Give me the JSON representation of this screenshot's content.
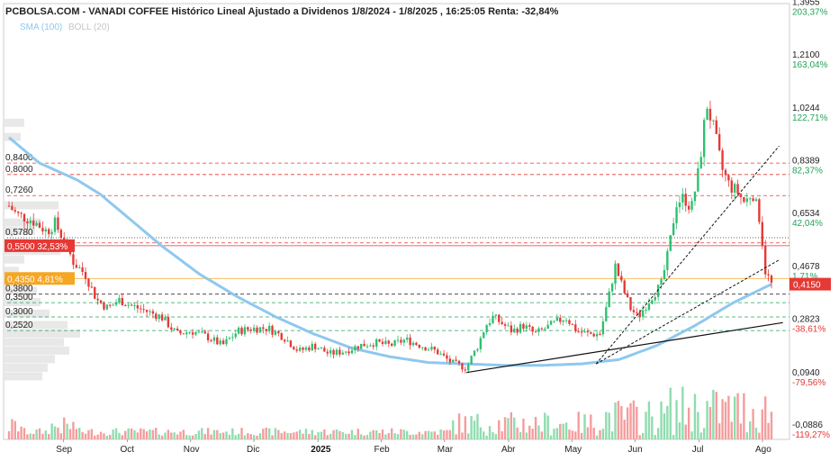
{
  "chart_data": {
    "type": "candlestick",
    "title": "PCBOLSA.COM - VANADI COFFEE Histórico Lineal Ajustado a Dividenos 1/8/2024 - 1/8/2025 , 16:25:05 Renta: -32,84%",
    "legend": {
      "sma": "SMA (100)",
      "boll": "BOLL (20)",
      "placement": "top-left"
    },
    "y_scale": "linear",
    "y_range": [
      -0.13,
      1.4
    ],
    "right_axis": [
      {
        "price": "1,3955",
        "pct": "203,37%",
        "v": 1.3955,
        "tone": "green"
      },
      {
        "price": "1,2100",
        "pct": "163,04%",
        "v": 1.21,
        "tone": "green"
      },
      {
        "price": "1,0244",
        "pct": "122,71%",
        "v": 1.0244,
        "tone": "green"
      },
      {
        "price": "0,8389",
        "pct": "82,37%",
        "v": 0.8389,
        "tone": "green"
      },
      {
        "price": "0,6534",
        "pct": "42,04%",
        "v": 0.6534,
        "tone": "green"
      },
      {
        "price": "0,4678",
        "pct": "1,71%",
        "v": 0.4678,
        "tone": "green"
      },
      {
        "price": "0,2823",
        "pct": "-38,61%",
        "v": 0.2823,
        "tone": "red"
      },
      {
        "price": "0,0940",
        "pct": "-79,56%",
        "v": 0.094,
        "tone": "red"
      },
      {
        "price": "-0,0886",
        "pct": "-119,27%",
        "v": -0.0886,
        "tone": "red"
      }
    ],
    "current_price": {
      "label": "0,4150",
      "v": 0.415
    },
    "levels": [
      {
        "label": "0,8400",
        "v": 0.84,
        "color": "#e53935",
        "dash": "4,3"
      },
      {
        "label": "0,8000",
        "v": 0.8,
        "color": "#e53935",
        "dash": "4,3"
      },
      {
        "label": "0,7260",
        "v": 0.726,
        "color": "#e53935",
        "dash": "4,3"
      },
      {
        "label": "0,5780",
        "v": 0.578,
        "color": "#333333",
        "dash": "1,2"
      },
      {
        "label": "",
        "v": 0.56,
        "color": "#e53935",
        "dash": "4,3"
      },
      {
        "label": "0,3800",
        "v": 0.38,
        "color": "#333333",
        "dash": "4,3"
      },
      {
        "label": "0,3500",
        "v": 0.35,
        "color": "#22a35a",
        "dash": "4,3"
      },
      {
        "label": "0,3000",
        "v": 0.3,
        "color": "#22a35a",
        "dash": "4,3"
      },
      {
        "label": "0,2520",
        "v": 0.252,
        "color": "#22a35a",
        "dash": "4,3"
      }
    ],
    "badges": [
      {
        "label": "0,5500",
        "pct": "32,53%",
        "v": 0.55,
        "color": "#e53935"
      },
      {
        "label": "0,4350",
        "pct": "4,81%",
        "v": 0.435,
        "color": "#f5a623"
      }
    ],
    "reference_lines": [
      {
        "v": 0.55,
        "color": "#e53935",
        "dash": ""
      },
      {
        "v": 0.435,
        "color": "#f5a623",
        "dash": ""
      }
    ],
    "x_axis": [
      {
        "label": "Sep",
        "pos": 0.083
      },
      {
        "label": "Oct",
        "pos": 0.167
      },
      {
        "label": "Nov",
        "pos": 0.25
      },
      {
        "label": "Dic",
        "pos": 0.333
      },
      {
        "label": "2025",
        "pos": 0.417,
        "bold": true
      },
      {
        "label": "Feb",
        "pos": 0.5
      },
      {
        "label": "Mar",
        "pos": 0.583
      },
      {
        "label": "Abr",
        "pos": 0.667
      },
      {
        "label": "May",
        "pos": 0.75
      },
      {
        "label": "Jun",
        "pos": 0.833
      },
      {
        "label": "Jul",
        "pos": 0.917
      },
      {
        "label": "Ago",
        "pos": 1.0
      }
    ],
    "price_anchors": [
      [
        0.0,
        0.69
      ],
      [
        0.01,
        0.66
      ],
      [
        0.02,
        0.65
      ],
      [
        0.03,
        0.64
      ],
      [
        0.04,
        0.62
      ],
      [
        0.05,
        0.6
      ],
      [
        0.06,
        0.63
      ],
      [
        0.07,
        0.58
      ],
      [
        0.085,
        0.49
      ],
      [
        0.1,
        0.45
      ],
      [
        0.115,
        0.36
      ],
      [
        0.13,
        0.33
      ],
      [
        0.145,
        0.36
      ],
      [
        0.16,
        0.34
      ],
      [
        0.18,
        0.32
      ],
      [
        0.2,
        0.3
      ],
      [
        0.22,
        0.24
      ],
      [
        0.24,
        0.25
      ],
      [
        0.26,
        0.23
      ],
      [
        0.28,
        0.2
      ],
      [
        0.3,
        0.25
      ],
      [
        0.32,
        0.26
      ],
      [
        0.34,
        0.26
      ],
      [
        0.36,
        0.23
      ],
      [
        0.38,
        0.18
      ],
      [
        0.4,
        0.2
      ],
      [
        0.42,
        0.17
      ],
      [
        0.44,
        0.18
      ],
      [
        0.46,
        0.2
      ],
      [
        0.48,
        0.21
      ],
      [
        0.5,
        0.2
      ],
      [
        0.52,
        0.22
      ],
      [
        0.54,
        0.2
      ],
      [
        0.56,
        0.18
      ],
      [
        0.58,
        0.14
      ],
      [
        0.6,
        0.12
      ],
      [
        0.605,
        0.15
      ],
      [
        0.615,
        0.2
      ],
      [
        0.625,
        0.27
      ],
      [
        0.635,
        0.3
      ],
      [
        0.645,
        0.28
      ],
      [
        0.66,
        0.25
      ],
      [
        0.675,
        0.27
      ],
      [
        0.69,
        0.24
      ],
      [
        0.71,
        0.27
      ],
      [
        0.73,
        0.3
      ],
      [
        0.745,
        0.25
      ],
      [
        0.76,
        0.24
      ],
      [
        0.775,
        0.24
      ],
      [
        0.785,
        0.35
      ],
      [
        0.795,
        0.48
      ],
      [
        0.805,
        0.4
      ],
      [
        0.815,
        0.33
      ],
      [
        0.825,
        0.3
      ],
      [
        0.835,
        0.34
      ],
      [
        0.845,
        0.38
      ],
      [
        0.855,
        0.41
      ],
      [
        0.865,
        0.53
      ],
      [
        0.875,
        0.7
      ],
      [
        0.885,
        0.72
      ],
      [
        0.895,
        0.68
      ],
      [
        0.905,
        0.82
      ],
      [
        0.915,
        1.05
      ],
      [
        0.925,
        0.95
      ],
      [
        0.935,
        0.82
      ],
      [
        0.945,
        0.76
      ],
      [
        0.955,
        0.74
      ],
      [
        0.965,
        0.7
      ],
      [
        0.975,
        0.74
      ],
      [
        0.985,
        0.64
      ],
      [
        0.992,
        0.46
      ],
      [
        1.0,
        0.415
      ]
    ],
    "sma_anchors": [
      [
        0.0,
        0.93
      ],
      [
        0.04,
        0.84
      ],
      [
        0.09,
        0.78
      ],
      [
        0.12,
        0.73
      ],
      [
        0.16,
        0.64
      ],
      [
        0.2,
        0.55
      ],
      [
        0.25,
        0.45
      ],
      [
        0.3,
        0.37
      ],
      [
        0.35,
        0.3
      ],
      [
        0.4,
        0.24
      ],
      [
        0.45,
        0.19
      ],
      [
        0.5,
        0.16
      ],
      [
        0.55,
        0.14
      ],
      [
        0.6,
        0.135
      ],
      [
        0.65,
        0.13
      ],
      [
        0.7,
        0.13
      ],
      [
        0.75,
        0.135
      ],
      [
        0.8,
        0.15
      ],
      [
        0.85,
        0.2
      ],
      [
        0.9,
        0.27
      ],
      [
        0.95,
        0.35
      ],
      [
        1.0,
        0.415
      ]
    ],
    "trendlines": [
      {
        "x1": 0.6,
        "v1": 0.105,
        "x2": 1.015,
        "v2": 0.28,
        "color": "#111111",
        "dash": "",
        "width": 1.2
      },
      {
        "x1": 0.77,
        "v1": 0.135,
        "x2": 1.01,
        "v2": 0.9,
        "color": "#111111",
        "dash": "3,2",
        "width": 1
      },
      {
        "x1": 0.77,
        "v1": 0.135,
        "x2": 1.01,
        "v2": 0.5,
        "color": "#111111",
        "dash": "3,2",
        "width": 1
      }
    ],
    "volume_profile": [
      {
        "v": 0.98,
        "w": 22
      },
      {
        "v": 0.93,
        "w": 18
      },
      {
        "v": 0.69,
        "w": 60
      },
      {
        "v": 0.63,
        "w": 40
      },
      {
        "v": 0.6,
        "w": 34
      },
      {
        "v": 0.56,
        "w": 26
      },
      {
        "v": 0.53,
        "w": 62
      },
      {
        "v": 0.5,
        "w": 22
      },
      {
        "v": 0.46,
        "w": 16
      },
      {
        "v": 0.42,
        "w": 30
      },
      {
        "v": 0.39,
        "w": 36
      },
      {
        "v": 0.35,
        "w": 40
      },
      {
        "v": 0.31,
        "w": 50
      },
      {
        "v": 0.27,
        "w": 70
      },
      {
        "v": 0.24,
        "w": 84
      },
      {
        "v": 0.21,
        "w": 66
      },
      {
        "v": 0.18,
        "w": 72
      },
      {
        "v": 0.15,
        "w": 56
      },
      {
        "v": 0.12,
        "w": 48
      },
      {
        "v": 0.09,
        "w": 42
      }
    ],
    "colors": {
      "up": "#2fbf71",
      "down": "#e53935",
      "sma": "#8fc8ee",
      "volume_up": "#8fdcae",
      "volume_down": "#f59c9c"
    },
    "grid": false
  }
}
